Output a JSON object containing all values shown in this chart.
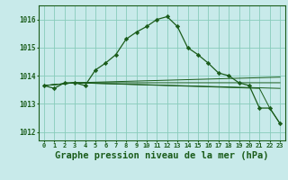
{
  "background_color": "#c8eaea",
  "grid_color": "#88ccbb",
  "line_color": "#1a5c1a",
  "marker_color": "#1a5c1a",
  "xlabel": "Graphe pression niveau de la mer (hPa)",
  "xlabel_fontsize": 7.5,
  "xlim": [
    -0.5,
    23.5
  ],
  "ylim": [
    1011.7,
    1016.5
  ],
  "yticks": [
    1012,
    1013,
    1014,
    1015,
    1016
  ],
  "xticks": [
    0,
    1,
    2,
    3,
    4,
    5,
    6,
    7,
    8,
    9,
    10,
    11,
    12,
    13,
    14,
    15,
    16,
    17,
    18,
    19,
    20,
    21,
    22,
    23
  ],
  "series_main": {
    "x": [
      0,
      1,
      2,
      3,
      4,
      5,
      6,
      7,
      8,
      9,
      10,
      11,
      12,
      13,
      14,
      15,
      16,
      17,
      18,
      19,
      20,
      21,
      22,
      23
    ],
    "y": [
      1013.65,
      1013.55,
      1013.75,
      1013.75,
      1013.65,
      1014.2,
      1014.45,
      1014.75,
      1015.3,
      1015.55,
      1015.75,
      1016.0,
      1016.1,
      1015.75,
      1015.0,
      1014.75,
      1014.45,
      1014.1,
      1014.0,
      1013.75,
      1013.65,
      1012.85,
      1012.85,
      1012.3
    ]
  },
  "series_flat": [
    {
      "x": [
        0,
        3,
        23
      ],
      "y": [
        1013.65,
        1013.75,
        1013.95
      ]
    },
    {
      "x": [
        0,
        3,
        23
      ],
      "y": [
        1013.65,
        1013.75,
        1013.75
      ]
    },
    {
      "x": [
        0,
        3,
        23
      ],
      "y": [
        1013.65,
        1013.75,
        1013.55
      ]
    },
    {
      "x": [
        0,
        3,
        21,
        22,
        23
      ],
      "y": [
        1013.65,
        1013.75,
        1013.55,
        1012.85,
        1012.3
      ]
    }
  ]
}
